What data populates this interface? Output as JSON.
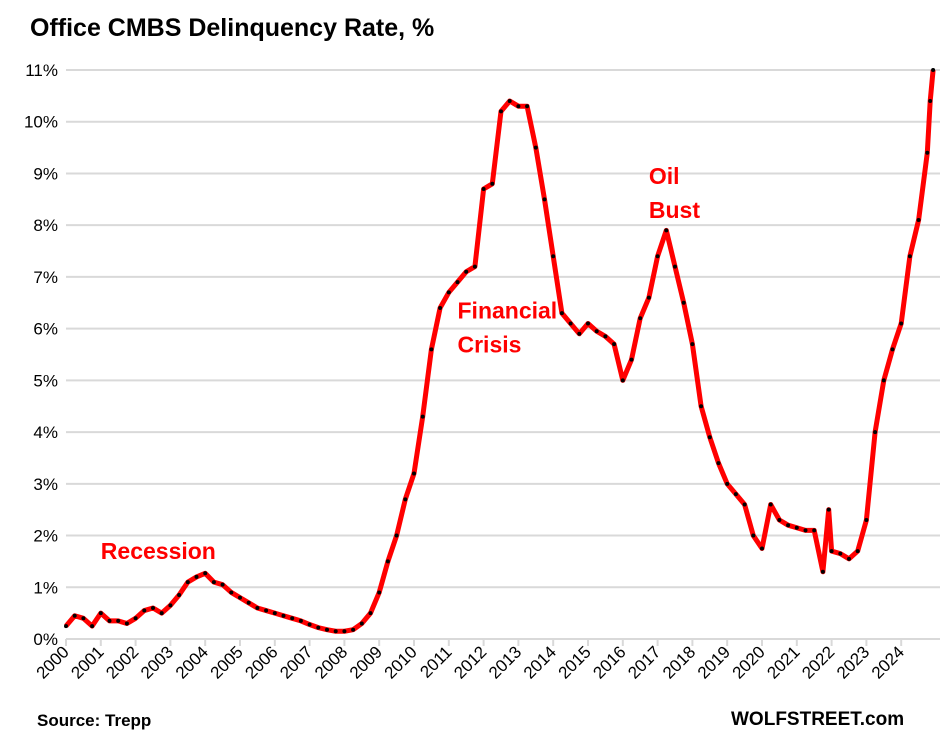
{
  "chart_data": {
    "type": "line",
    "title": "Office CMBS Delinquency Rate, %",
    "xlabel": "",
    "ylabel": "",
    "ylim": [
      0,
      11
    ],
    "xlim": [
      "2000-01",
      "2025-01"
    ],
    "grid": true,
    "legend": "none",
    "line_color": "#ff0000",
    "marker_color": "#000000",
    "y_ticks": [
      "0%",
      "1%",
      "2%",
      "3%",
      "4%",
      "5%",
      "6%",
      "7%",
      "8%",
      "9%",
      "10%",
      "11%"
    ],
    "x_ticks": [
      "2000",
      "2001",
      "2002",
      "2003",
      "2004",
      "2005",
      "2006",
      "2007",
      "2008",
      "2009",
      "2010",
      "2011",
      "2012",
      "2013",
      "2014",
      "2015",
      "2016",
      "2017",
      "2018",
      "2019",
      "2020",
      "2021",
      "2022",
      "2023",
      "2024"
    ],
    "annotations": [
      {
        "text": "Recession",
        "at": [
          "2001-01",
          1.55
        ]
      },
      {
        "text": "Financial Crisis",
        "at": [
          "2011-04",
          6.2
        ]
      },
      {
        "text": "Oil Bust",
        "at": [
          "2016-10",
          8.8
        ]
      }
    ],
    "annotation_color": "#ff0000",
    "series": [
      {
        "x": [
          "2000-01",
          "2000-04",
          "2000-07",
          "2000-10",
          "2001-01",
          "2001-04",
          "2001-07",
          "2001-10",
          "2002-01",
          "2002-04",
          "2002-07",
          "2002-10",
          "2003-01",
          "2003-04",
          "2003-07",
          "2003-10",
          "2004-01",
          "2004-04",
          "2004-07",
          "2004-10",
          "2005-01",
          "2005-04",
          "2005-07",
          "2005-10",
          "2006-01",
          "2006-04",
          "2006-07",
          "2006-10",
          "2007-01",
          "2007-04",
          "2007-07",
          "2007-10",
          "2008-01",
          "2008-04",
          "2008-07",
          "2008-10",
          "2009-01",
          "2009-04",
          "2009-07",
          "2009-10",
          "2010-01",
          "2010-04",
          "2010-07",
          "2010-10",
          "2011-01",
          "2011-04",
          "2011-07",
          "2011-10",
          "2012-01",
          "2012-04",
          "2012-07",
          "2012-10",
          "2013-01",
          "2013-04",
          "2013-07",
          "2013-10",
          "2014-01",
          "2014-04",
          "2014-07",
          "2014-10",
          "2015-01",
          "2015-04",
          "2015-07",
          "2015-10",
          "2016-01",
          "2016-04",
          "2016-07",
          "2016-10",
          "2017-01",
          "2017-04",
          "2017-07",
          "2017-10",
          "2018-01",
          "2018-04",
          "2018-07",
          "2018-10",
          "2019-01",
          "2019-04",
          "2019-07",
          "2019-10",
          "2020-01",
          "2020-04",
          "2020-07",
          "2020-10",
          "2021-01",
          "2021-04",
          "2021-07",
          "2021-10",
          "2021-12",
          "2022-01",
          "2022-04",
          "2022-07",
          "2022-10",
          "2023-01",
          "2023-04",
          "2023-07",
          "2023-10",
          "2024-01",
          "2024-04",
          "2024-07",
          "2024-10",
          "2024-11",
          "2024-12"
        ],
        "values": [
          0.25,
          0.45,
          0.4,
          0.25,
          0.5,
          0.35,
          0.35,
          0.3,
          0.4,
          0.55,
          0.6,
          0.5,
          0.65,
          0.85,
          1.1,
          1.2,
          1.27,
          1.1,
          1.05,
          0.9,
          0.8,
          0.7,
          0.6,
          0.55,
          0.5,
          0.45,
          0.4,
          0.35,
          0.28,
          0.22,
          0.18,
          0.15,
          0.15,
          0.18,
          0.3,
          0.5,
          0.9,
          1.5,
          2.0,
          2.7,
          3.2,
          4.3,
          5.6,
          6.4,
          6.7,
          6.9,
          7.1,
          7.2,
          8.7,
          8.8,
          10.2,
          10.4,
          10.3,
          10.3,
          9.5,
          8.5,
          7.4,
          6.3,
          6.1,
          5.9,
          6.1,
          5.95,
          5.85,
          5.7,
          5.0,
          5.4,
          6.2,
          6.6,
          7.4,
          7.9,
          7.2,
          6.5,
          5.7,
          4.5,
          3.9,
          3.4,
          3.0,
          2.8,
          2.6,
          2.0,
          1.75,
          2.6,
          2.3,
          2.2,
          2.15,
          2.1,
          2.1,
          1.3,
          2.5,
          1.7,
          1.65,
          1.55,
          1.7,
          2.3,
          4.0,
          5.0,
          5.6,
          6.1,
          7.4,
          8.1,
          9.4,
          10.4,
          11.0
        ]
      }
    ]
  },
  "footer": {
    "source": "Source: Trepp",
    "brand": "WOLFSTREET.com"
  }
}
